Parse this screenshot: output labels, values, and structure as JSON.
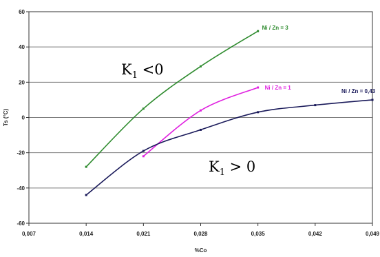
{
  "chart_data": {
    "type": "line",
    "xlabel": "%Co",
    "ylabel": "Ts (°C)",
    "xlim": [
      0.007,
      0.049
    ],
    "ylim": [
      -60,
      60
    ],
    "x_ticks": [
      "0,007",
      "0,014",
      "0,021",
      "0,028",
      "0,035",
      "0,042",
      "0,049"
    ],
    "y_ticks": [
      "60",
      "40",
      "20",
      "0",
      "-20",
      "-40",
      "-60"
    ],
    "grid": "horizontal",
    "series": [
      {
        "name": "Ni / Zn = 3",
        "color": "#2e8b2e",
        "x": [
          0.014,
          0.021,
          0.028,
          0.035
        ],
        "y": [
          -28,
          5,
          29,
          49
        ]
      },
      {
        "name": "Ni / Zn = 1",
        "color": "#e020e0",
        "x": [
          0.021,
          0.028,
          0.035
        ],
        "y": [
          -22,
          4,
          17
        ]
      },
      {
        "name": "Ni / Zn = 0,43",
        "color": "#1a1a5a",
        "x": [
          0.014,
          0.021,
          0.028,
          0.035,
          0.042,
          0.049
        ],
        "y": [
          -44,
          -19,
          -7,
          3,
          7,
          10
        ]
      }
    ],
    "annotations": [
      {
        "base": "K",
        "sub": "1",
        "rest": " <0"
      },
      {
        "base": "K",
        "sub": "1",
        "rest": " > 0"
      }
    ]
  }
}
